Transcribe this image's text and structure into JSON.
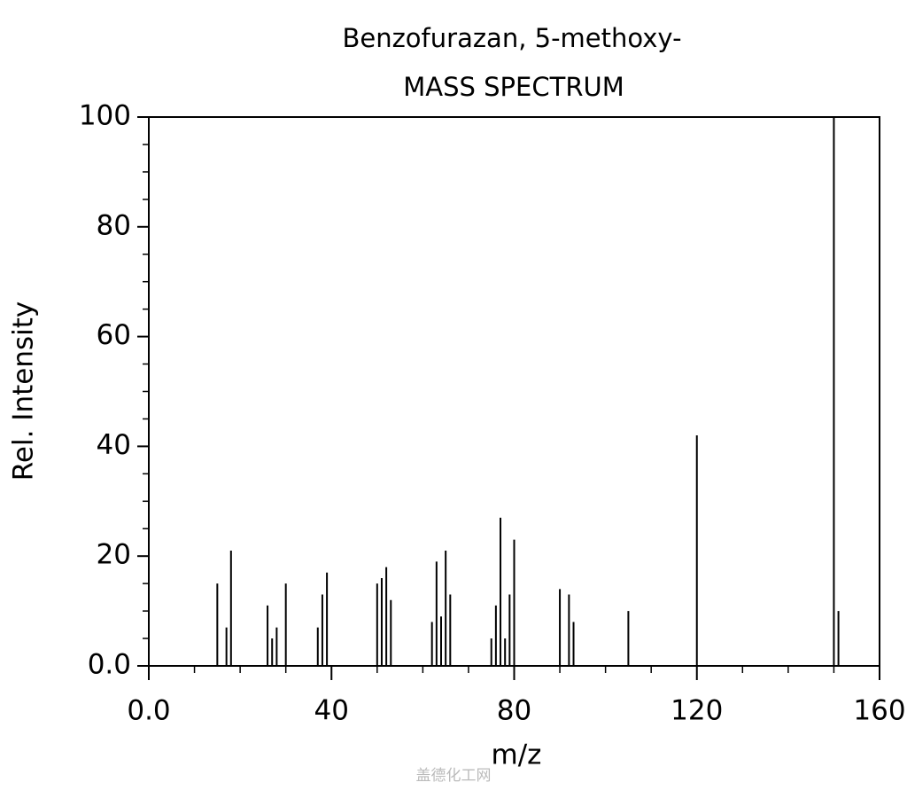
{
  "chart_data": {
    "type": "bar",
    "title": "Benzofurazan, 5-methoxy-",
    "subtitle": "MASS SPECTRUM",
    "x_label": "m/z",
    "y_label": "Rel. Intensity",
    "watermark": "盖德化工网",
    "color": "#000000",
    "x": [
      15,
      17,
      18,
      26,
      27,
      28,
      30,
      37,
      38,
      39,
      50,
      51,
      52,
      53,
      62,
      63,
      64,
      65,
      66,
      75,
      76,
      77,
      78,
      79,
      80,
      90,
      92,
      93,
      105,
      120,
      150,
      151
    ],
    "values": [
      15,
      7,
      21,
      11,
      5,
      7,
      15,
      7,
      13,
      17,
      15,
      16,
      18,
      12,
      8,
      19,
      9,
      21,
      13,
      5,
      11,
      27,
      5,
      13,
      23,
      14,
      13,
      8,
      10,
      42,
      100,
      10
    ],
    "xlim": [
      0,
      160
    ],
    "ylim": [
      0,
      100
    ],
    "xticks": [
      {
        "value": 0,
        "label": "0.0"
      },
      40,
      80,
      120,
      160
    ],
    "yticks": [
      {
        "value": 0,
        "label": "0.0"
      },
      20,
      40,
      60,
      80,
      100
    ],
    "xminorticks": [
      10,
      20,
      30,
      50,
      60,
      70,
      90,
      100,
      110,
      130,
      140,
      150
    ],
    "yminorticks": [
      5,
      10,
      15,
      25,
      30,
      35,
      45,
      50,
      55,
      65,
      70,
      75,
      85,
      90,
      95
    ]
  }
}
